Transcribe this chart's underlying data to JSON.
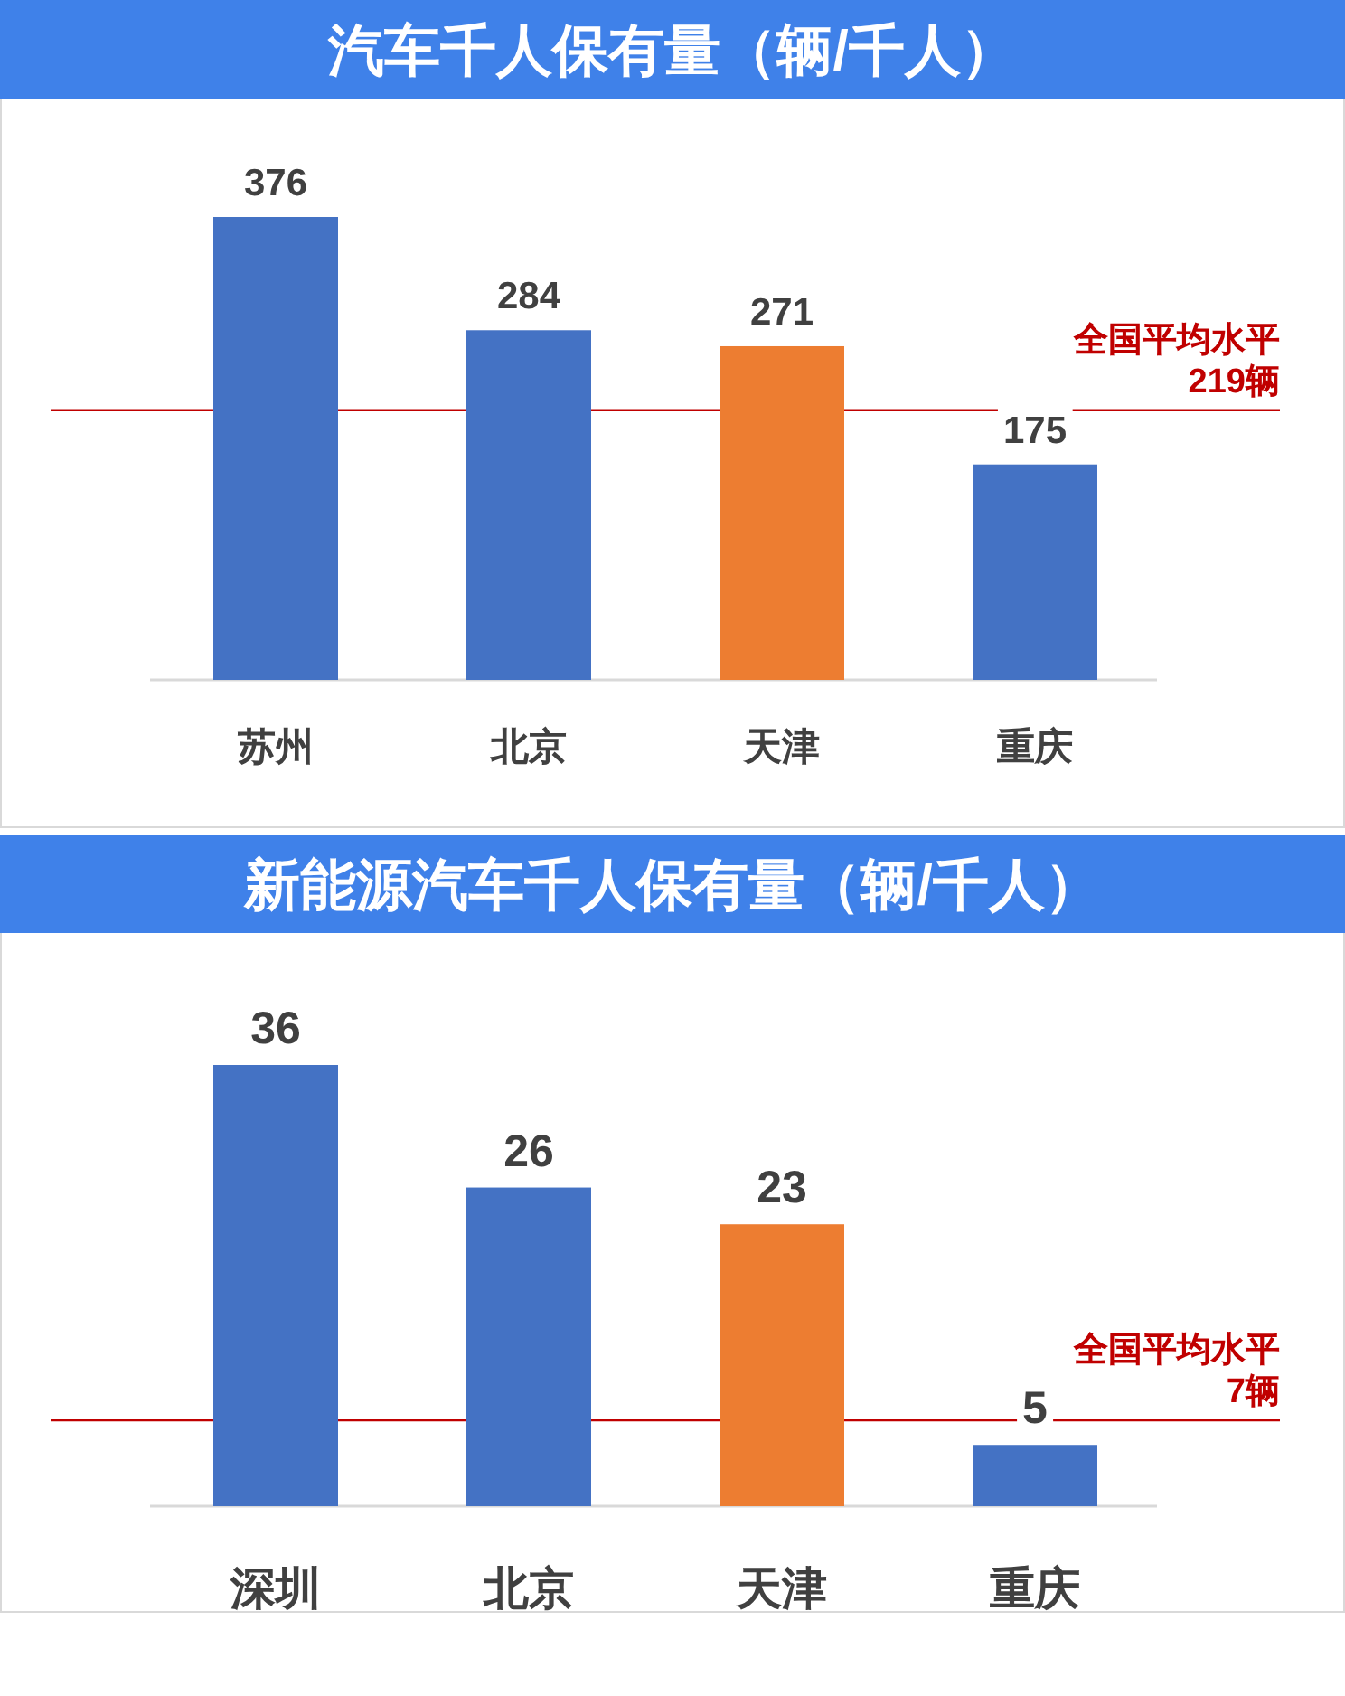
{
  "chart_data": [
    {
      "type": "bar",
      "title": "汽车千人保有量（辆/千人）",
      "categories": [
        "苏州",
        "北京",
        "天津",
        "重庆"
      ],
      "values": [
        376,
        284,
        271,
        175
      ],
      "colors": [
        "#4472c4",
        "#4472c4",
        "#ed7d31",
        "#4472c4"
      ],
      "data_labels": true,
      "ref_lines": [
        {
          "axis": "y",
          "value": 219,
          "label": "全国平均水平\n219辆",
          "color": "#c00000"
        }
      ]
    },
    {
      "type": "bar",
      "title": "新能源汽车千人保有量（辆/千人）",
      "categories": [
        "深圳",
        "北京",
        "天津",
        "重庆"
      ],
      "values": [
        36,
        26,
        23,
        5
      ],
      "colors": [
        "#4472c4",
        "#4472c4",
        "#ed7d31",
        "#4472c4"
      ],
      "data_labels": true,
      "ref_lines": [
        {
          "axis": "y",
          "value": 7,
          "label": "全国平均水平\n7辆",
          "color": "#c00000"
        }
      ]
    }
  ]
}
